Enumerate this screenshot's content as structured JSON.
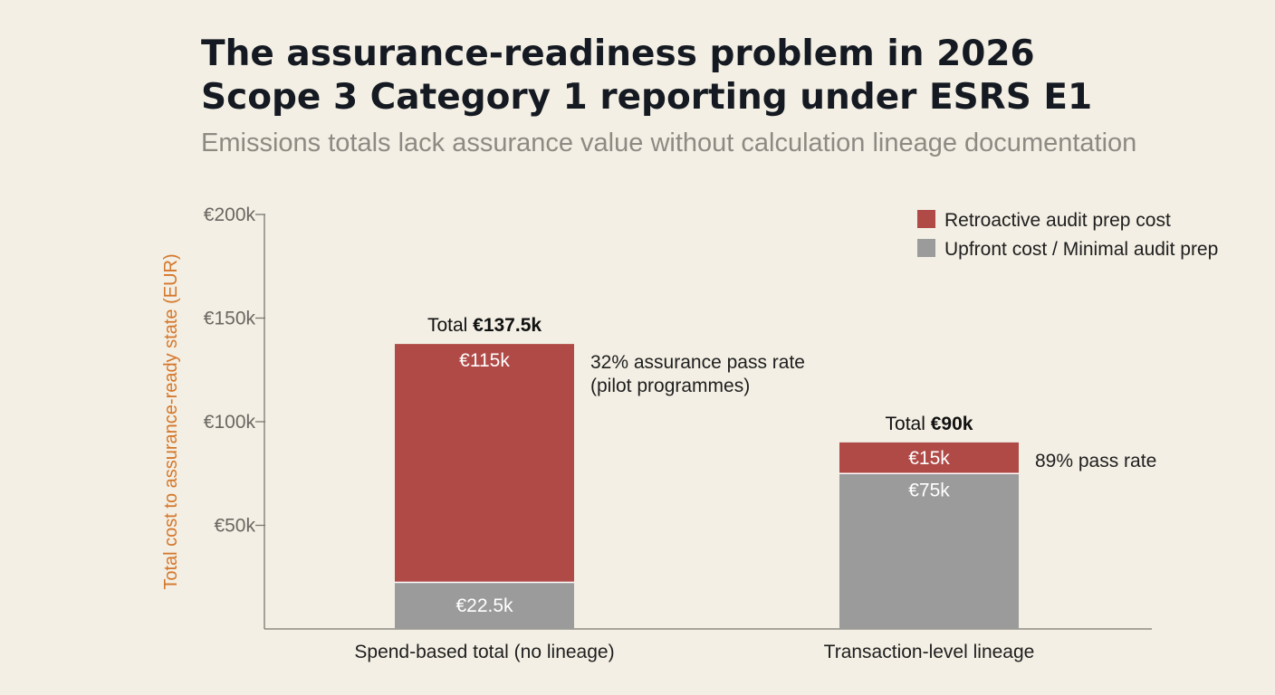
{
  "header": {
    "title_line1": "The assurance-readiness problem in 2026",
    "title_line2": "Scope 3 Category 1 reporting under ESRS E1",
    "subtitle": "Emissions totals lack assurance value without calculation lineage documentation"
  },
  "colors": {
    "background": "#f3efe4",
    "retroactive": "#b04a47",
    "upfront": "#9b9b9b",
    "ylabel": "#d4762a"
  },
  "chart_data": {
    "type": "bar",
    "stacked": true,
    "title": "",
    "xlabel": "",
    "ylabel": "Total cost to assurance-ready state (EUR)",
    "ylim": [
      0,
      200000
    ],
    "ticks": [
      {
        "value": 50000,
        "label": "€50k"
      },
      {
        "value": 100000,
        "label": "€100k"
      },
      {
        "value": 150000,
        "label": "€150k"
      },
      {
        "value": 200000,
        "label": "€200k"
      }
    ],
    "categories": [
      "Spend-based total (no lineage)",
      "Transaction-level lineage"
    ],
    "series": [
      {
        "name": "Upfront cost / Minimal audit prep",
        "color": "#9b9b9b",
        "values": [
          22500,
          75000
        ],
        "labels": [
          "€22.5k",
          "€75k"
        ]
      },
      {
        "name": "Retroactive audit prep cost",
        "color": "#b04a47",
        "values": [
          115000,
          15000
        ],
        "labels": [
          "€115k",
          "€15k"
        ]
      }
    ],
    "totals": [
      {
        "prefix": "Total ",
        "value": "€137.5k"
      },
      {
        "prefix": "Total ",
        "value": "€90k"
      }
    ],
    "annotations": [
      {
        "lines": [
          "32% assurance pass rate",
          "(pilot programmes)"
        ]
      },
      {
        "lines": [
          "89% pass rate"
        ]
      }
    ],
    "legend": {
      "position": "top-right",
      "items": [
        {
          "label": "Retroactive audit prep cost",
          "color": "#b04a47"
        },
        {
          "label": "Upfront cost / Minimal audit prep",
          "color": "#9b9b9b"
        }
      ]
    },
    "grid": false
  }
}
